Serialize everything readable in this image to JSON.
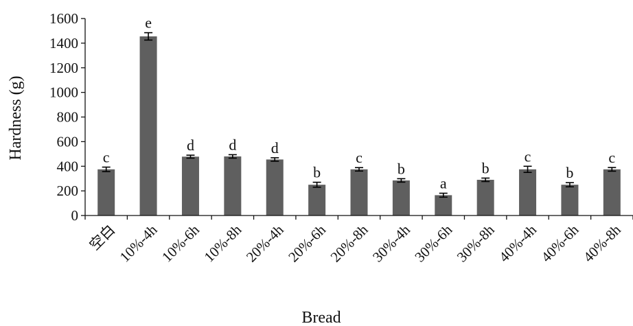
{
  "chart_data": {
    "type": "bar",
    "title": "",
    "xlabel": "Bread",
    "ylabel": "Hardness (g)",
    "ylim": [
      0,
      1600
    ],
    "yticks": [
      "0",
      "200",
      "400",
      "600",
      "800",
      "1000",
      "1200",
      "1400",
      "1600"
    ],
    "grid": false,
    "legend": "none",
    "bar_color": "#5f5f5f",
    "categories": [
      "空白",
      "10%-4h",
      "10%-6h",
      "10%-8h",
      "20%-4h",
      "20%-6h",
      "20%-8h",
      "30%-4h",
      "30%-6h",
      "30%-8h",
      "40%-4h",
      "40%-6h",
      "40%-8h"
    ],
    "values": [
      375,
      1455,
      478,
      480,
      455,
      250,
      375,
      285,
      165,
      290,
      375,
      250,
      375
    ],
    "errors": [
      18,
      30,
      12,
      14,
      14,
      20,
      14,
      14,
      16,
      14,
      25,
      17,
      15
    ],
    "significance_labels": [
      "c",
      "e",
      "d",
      "d",
      "d",
      "b",
      "c",
      "b",
      "a",
      "b",
      "c",
      "b",
      "c"
    ]
  }
}
